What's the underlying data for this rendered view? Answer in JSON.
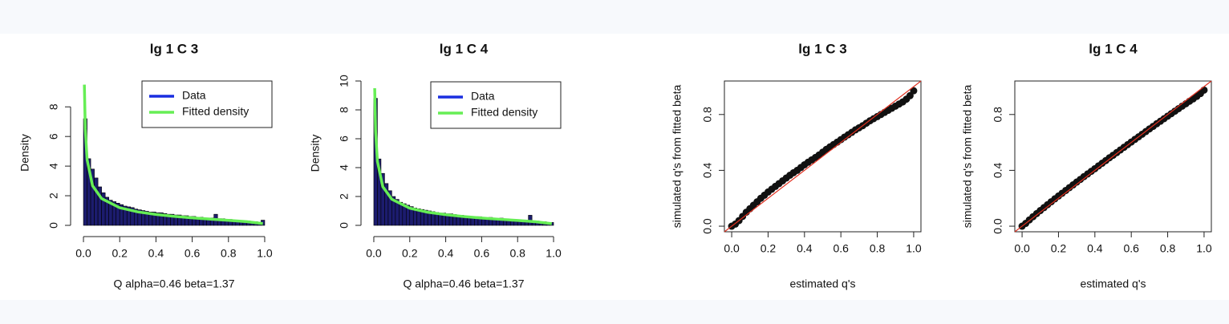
{
  "chart_data": [
    {
      "type": "histogram",
      "title": "lg 1 C 3",
      "x_label": "Q alpha=0.46 beta=1.37",
      "y_label": "Density",
      "bins": [
        0,
        0.02,
        0.04,
        0.06,
        0.08,
        0.1,
        0.12,
        0.14,
        0.16,
        0.18,
        0.2,
        0.22,
        0.24,
        0.26,
        0.28,
        0.3,
        0.32,
        0.34,
        0.36,
        0.38,
        0.4,
        0.42,
        0.44,
        0.46,
        0.48,
        0.5,
        0.52,
        0.54,
        0.56,
        0.58,
        0.6,
        0.62,
        0.64,
        0.66,
        0.68,
        0.7,
        0.72,
        0.74,
        0.76,
        0.78,
        0.8,
        0.82,
        0.84,
        0.86,
        0.88,
        0.9,
        0.92,
        0.94,
        0.96,
        0.98,
        1
      ],
      "series": [
        {
          "name": "Data",
          "color": "#1a2ee0",
          "fill": "#1c1c6e",
          "values": [
            7.2,
            4.5,
            3.8,
            3.2,
            2.6,
            2.2,
            1.9,
            1.7,
            1.6,
            1.5,
            1.4,
            1.3,
            1.25,
            1.2,
            1.1,
            1.05,
            1.0,
            0.95,
            0.9,
            0.9,
            0.85,
            0.85,
            0.8,
            0.75,
            0.75,
            0.7,
            0.7,
            0.65,
            0.65,
            0.6,
            0.6,
            0.55,
            0.55,
            0.5,
            0.5,
            0.5,
            0.75,
            0.45,
            0.45,
            0.4,
            0.4,
            0.35,
            0.35,
            0.3,
            0.3,
            0.3,
            0.25,
            0.25,
            0.2,
            0.35
          ]
        },
        {
          "name": "Fitted density",
          "color": "#66ee55",
          "x": [
            0.005,
            0.01,
            0.02,
            0.05,
            0.1,
            0.2,
            0.3,
            0.4,
            0.5,
            0.6,
            0.7,
            0.8,
            0.9,
            0.99
          ],
          "values": [
            9.5,
            6.5,
            4.44,
            2.68,
            1.81,
            1.19,
            0.91,
            0.74,
            0.61,
            0.51,
            0.42,
            0.34,
            0.25,
            0.12
          ]
        }
      ],
      "xlim": [
        -0.04,
        1.04
      ],
      "ylim": [
        0,
        9.8
      ],
      "xticks": [
        {
          "value": 0,
          "label": "0.0"
        },
        0.2,
        0.4,
        0.6,
        0.8,
        {
          "value": 1,
          "label": "1.0"
        }
      ],
      "yticks": [
        0,
        2,
        4,
        6,
        8
      ],
      "legend": "topright"
    },
    {
      "type": "histogram",
      "title": "lg 1 C 4",
      "x_label": "Q alpha=0.46 beta=1.37",
      "y_label": "Density",
      "bins": [
        0,
        0.02,
        0.04,
        0.06,
        0.08,
        0.1,
        0.12,
        0.14,
        0.16,
        0.18,
        0.2,
        0.22,
        0.24,
        0.26,
        0.28,
        0.3,
        0.32,
        0.34,
        0.36,
        0.38,
        0.4,
        0.42,
        0.44,
        0.46,
        0.48,
        0.5,
        0.52,
        0.54,
        0.56,
        0.58,
        0.6,
        0.62,
        0.64,
        0.66,
        0.68,
        0.7,
        0.72,
        0.74,
        0.76,
        0.78,
        0.8,
        0.82,
        0.84,
        0.86,
        0.88,
        0.9,
        0.92,
        0.94,
        0.96,
        0.98,
        1
      ],
      "series": [
        {
          "name": "Data",
          "color": "#1a2ee0",
          "fill": "#1c1c6e",
          "values": [
            8.8,
            4.6,
            3.6,
            2.9,
            2.4,
            2.0,
            1.8,
            1.6,
            1.5,
            1.4,
            1.3,
            1.2,
            1.15,
            1.1,
            1.05,
            1.0,
            0.95,
            0.9,
            0.85,
            0.85,
            0.8,
            0.8,
            0.75,
            0.7,
            0.7,
            0.65,
            0.65,
            0.6,
            0.6,
            0.6,
            0.55,
            0.5,
            0.55,
            0.5,
            0.45,
            0.5,
            0.45,
            0.4,
            0.4,
            0.35,
            0.35,
            0.35,
            0.35,
            0.7,
            0.3,
            0.3,
            0.25,
            0.25,
            0.2,
            0.2
          ]
        },
        {
          "name": "Fitted density",
          "color": "#66ee55",
          "x": [
            0.005,
            0.01,
            0.02,
            0.05,
            0.1,
            0.2,
            0.3,
            0.4,
            0.5,
            0.6,
            0.7,
            0.8,
            0.9,
            0.99
          ],
          "values": [
            9.5,
            6.5,
            4.44,
            2.68,
            1.81,
            1.19,
            0.91,
            0.74,
            0.61,
            0.51,
            0.42,
            0.34,
            0.25,
            0.12
          ]
        }
      ],
      "xlim": [
        -0.04,
        1.04
      ],
      "ylim": [
        0,
        10
      ],
      "xticks": [
        {
          "value": 0,
          "label": "0.0"
        },
        0.2,
        0.4,
        0.6,
        0.8,
        {
          "value": 1,
          "label": "1.0"
        }
      ],
      "yticks": [
        0,
        2,
        4,
        6,
        8,
        10
      ],
      "legend": "topright"
    },
    {
      "type": "scatter",
      "title": "lg 1 C 3",
      "x_label": "estimated q's",
      "y_label": "simulated q's from fitted beta",
      "color": "#111111",
      "abline_color": "#e03020",
      "x": [
        0,
        0.02,
        0.04,
        0.06,
        0.08,
        0.1,
        0.12,
        0.14,
        0.16,
        0.18,
        0.2,
        0.22,
        0.24,
        0.26,
        0.28,
        0.3,
        0.32,
        0.34,
        0.36,
        0.38,
        0.4,
        0.42,
        0.44,
        0.46,
        0.48,
        0.5,
        0.52,
        0.54,
        0.56,
        0.58,
        0.6,
        0.62,
        0.64,
        0.66,
        0.68,
        0.7,
        0.72,
        0.74,
        0.76,
        0.78,
        0.8,
        0.82,
        0.84,
        0.86,
        0.88,
        0.9,
        0.92,
        0.94,
        0.96,
        0.98,
        1
      ],
      "values": [
        0,
        0.015,
        0.04,
        0.07,
        0.1,
        0.125,
        0.15,
        0.175,
        0.2,
        0.222,
        0.245,
        0.265,
        0.285,
        0.305,
        0.325,
        0.345,
        0.365,
        0.383,
        0.4,
        0.42,
        0.44,
        0.458,
        0.475,
        0.492,
        0.51,
        0.53,
        0.55,
        0.568,
        0.585,
        0.602,
        0.62,
        0.638,
        0.655,
        0.672,
        0.69,
        0.705,
        0.72,
        0.738,
        0.755,
        0.77,
        0.785,
        0.8,
        0.815,
        0.83,
        0.845,
        0.86,
        0.875,
        0.89,
        0.91,
        0.935,
        0.97
      ],
      "xlim": [
        -0.04,
        1.04
      ],
      "ylim": [
        -0.04,
        1.04
      ],
      "xticks": [
        {
          "value": 0,
          "label": "0.0"
        },
        0.2,
        0.4,
        0.6,
        0.8,
        {
          "value": 1,
          "label": "1.0"
        }
      ],
      "yticks": [
        {
          "value": 0,
          "label": "0.0"
        },
        0.4,
        0.8
      ]
    },
    {
      "type": "scatter",
      "title": "lg 1 C 4",
      "x_label": "estimated q's",
      "y_label": "simulated q's from fitted beta",
      "color": "#111111",
      "abline_color": "#e03020",
      "x": [
        0,
        0.02,
        0.04,
        0.06,
        0.08,
        0.1,
        0.12,
        0.14,
        0.16,
        0.18,
        0.2,
        0.22,
        0.24,
        0.26,
        0.28,
        0.3,
        0.32,
        0.34,
        0.36,
        0.38,
        0.4,
        0.42,
        0.44,
        0.46,
        0.48,
        0.5,
        0.52,
        0.54,
        0.56,
        0.58,
        0.6,
        0.62,
        0.64,
        0.66,
        0.68,
        0.7,
        0.72,
        0.74,
        0.76,
        0.78,
        0.8,
        0.82,
        0.84,
        0.86,
        0.88,
        0.9,
        0.92,
        0.94,
        0.96,
        0.98,
        1
      ],
      "values": [
        0,
        0.02,
        0.045,
        0.068,
        0.09,
        0.112,
        0.133,
        0.154,
        0.175,
        0.196,
        0.216,
        0.236,
        0.256,
        0.276,
        0.296,
        0.316,
        0.335,
        0.355,
        0.374,
        0.393,
        0.412,
        0.432,
        0.451,
        0.47,
        0.49,
        0.508,
        0.527,
        0.546,
        0.565,
        0.584,
        0.603,
        0.622,
        0.64,
        0.659,
        0.678,
        0.697,
        0.715,
        0.734,
        0.752,
        0.77,
        0.788,
        0.806,
        0.824,
        0.842,
        0.86,
        0.877,
        0.895,
        0.912,
        0.93,
        0.95,
        0.975
      ],
      "xlim": [
        -0.04,
        1.04
      ],
      "ylim": [
        -0.04,
        1.04
      ],
      "xticks": [
        {
          "value": 0,
          "label": "0.0"
        },
        0.2,
        0.4,
        0.6,
        0.8,
        {
          "value": 1,
          "label": "1.0"
        }
      ],
      "yticks": [
        {
          "value": 0,
          "label": "0.0"
        },
        0.4,
        0.8
      ]
    }
  ]
}
